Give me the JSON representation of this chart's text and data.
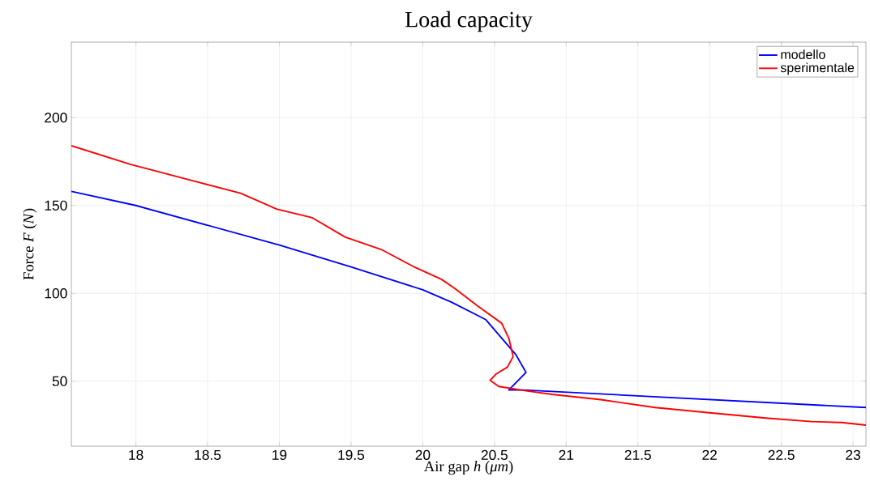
{
  "chart_data": {
    "type": "line",
    "title": "Load capacity",
    "xlabel": "Air gap *h* (*μm*)",
    "ylabel": "Force *F* (*N*)",
    "xlim": [
      17.55,
      23.09
    ],
    "ylim": [
      13,
      243
    ],
    "xticks": [
      18,
      18.5,
      19,
      19.5,
      20,
      20.5,
      21,
      21.5,
      22,
      22.5,
      23
    ],
    "yticks": [
      50,
      100,
      150,
      200
    ],
    "grid": true,
    "legend": "top right",
    "series": [
      {
        "name": "modello",
        "color": "#0000ff",
        "x": [
          17.55,
          18.0,
          19.0,
          19.5,
          20.0,
          20.2,
          20.44,
          20.65,
          20.72,
          20.6,
          20.7,
          23.09
        ],
        "values": [
          158,
          150,
          127.5,
          115,
          102,
          95,
          85,
          65,
          55,
          45,
          45,
          35
        ]
      },
      {
        "name": "sperimentale",
        "color": "#ff0000",
        "x": [
          17.55,
          17.96,
          18.4,
          18.73,
          18.98,
          19.23,
          19.46,
          19.71,
          19.94,
          20.13,
          20.22,
          20.38,
          20.55,
          20.6,
          20.63,
          20.59,
          20.51,
          20.47,
          20.53,
          20.72,
          20.9,
          21.24,
          21.62,
          22.0,
          22.39,
          22.71,
          22.92,
          23.09
        ],
        "values": [
          184,
          173.5,
          164,
          157,
          148,
          143,
          132,
          125,
          115,
          108,
          103,
          93,
          83,
          74.5,
          64,
          58,
          54,
          50.5,
          47,
          44.5,
          42.5,
          39.5,
          35,
          32,
          29,
          27,
          26.5,
          25
        ]
      }
    ]
  }
}
